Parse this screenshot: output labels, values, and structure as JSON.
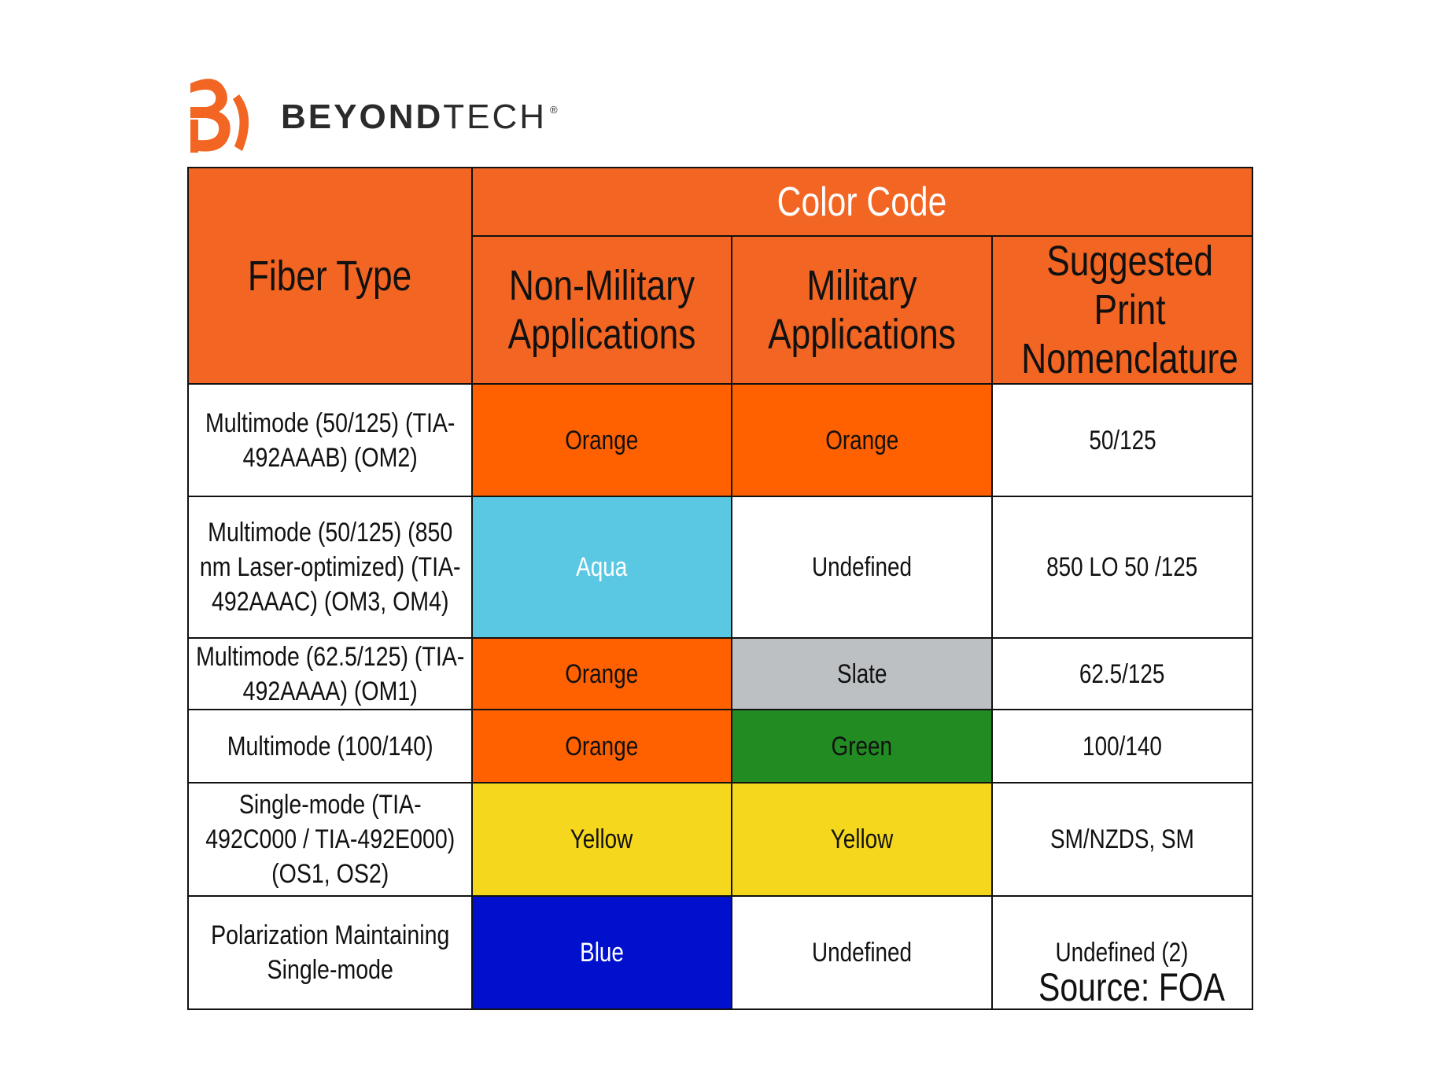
{
  "brand": {
    "name_bold": "BEYOND",
    "name_light": "TECH",
    "registered": "®",
    "accent": "#F26522"
  },
  "table": {
    "header": {
      "fiber_type": "Fiber Type",
      "color_code": "Color Code",
      "columns": [
        "Non-Military Applications",
        "Military Applications",
        "Suggested Print Nomenclature"
      ]
    },
    "rows": [
      {
        "fiber": "Multimode (50/125) (TIA-492AAAB) (OM2)",
        "non_military": "Orange",
        "non_military_color": "#FF6000",
        "military": "Orange",
        "military_color": "#FF6000",
        "print": "50/125"
      },
      {
        "fiber": "Multimode (50/125) (850 nm Laser-optimized) (TIA-492AAAC) (OM3, OM4)",
        "non_military": "Aqua",
        "non_military_color": "#5BC8E3",
        "military": "Undefined",
        "military_color": "#FFFFFF",
        "print": "850 LO 50 /125"
      },
      {
        "fiber": "Multimode (62.5/125) (TIA-492AAAA) (OM1)",
        "non_military": "Orange",
        "non_military_color": "#FF6000",
        "military": "Slate",
        "military_color": "#BCC0C3",
        "print": "62.5/125"
      },
      {
        "fiber": "Multimode (100/140)",
        "non_military": "Orange",
        "non_military_color": "#FF6000",
        "military": "Green",
        "military_color": "#228B22",
        "print": "100/140"
      },
      {
        "fiber": "Single-mode (TIA-492C000 / TIA-492E000) (OS1, OS2)",
        "non_military": "Yellow",
        "non_military_color": "#F5D71E",
        "military": "Yellow",
        "military_color": "#F5D71E",
        "print": "SM/NZDS, SM"
      },
      {
        "fiber": "Polarization Maintaining Single-mode",
        "non_military": "Blue",
        "non_military_color": "#0010CC",
        "military": "Undefined",
        "military_color": "#FFFFFF",
        "print": "Undefined (2)"
      }
    ]
  },
  "source": "Source: FOA"
}
